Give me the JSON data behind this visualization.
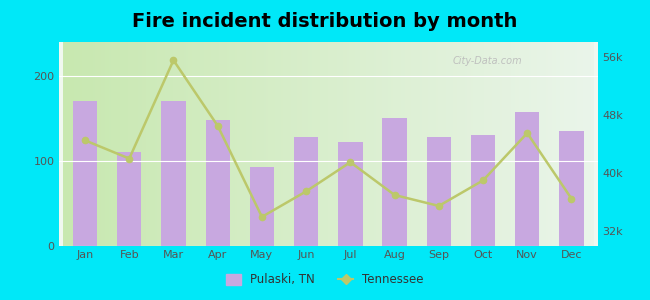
{
  "title": "Fire incident distribution by month",
  "months": [
    "Jan",
    "Feb",
    "Mar",
    "Apr",
    "May",
    "Jun",
    "Jul",
    "Aug",
    "Sep",
    "Oct",
    "Nov",
    "Dec"
  ],
  "bar_values": [
    170,
    110,
    170,
    148,
    93,
    128,
    122,
    150,
    128,
    130,
    158,
    135
  ],
  "line_values": [
    44500,
    42000,
    55500,
    46500,
    34000,
    37500,
    41500,
    37000,
    35500,
    39000,
    45500,
    36500
  ],
  "bar_color": "#c8a8e0",
  "line_color": "#bcc86a",
  "bg_left_color": "#d8eec8",
  "bg_right_color": "#f0f8f0",
  "outer_background": "#00e8f8",
  "left_ylim": [
    0,
    240
  ],
  "left_yticks": [
    0,
    100,
    200
  ],
  "right_ylim": [
    30000,
    58000
  ],
  "right_yticks": [
    32000,
    40000,
    48000,
    56000
  ],
  "right_yticklabels": [
    "32k",
    "40k",
    "48k",
    "56k"
  ],
  "legend_pulaski": "Pulaski, TN",
  "legend_tennessee": "Tennessee",
  "watermark": "City-Data.com",
  "tick_color": "#555555",
  "title_fontsize": 14
}
